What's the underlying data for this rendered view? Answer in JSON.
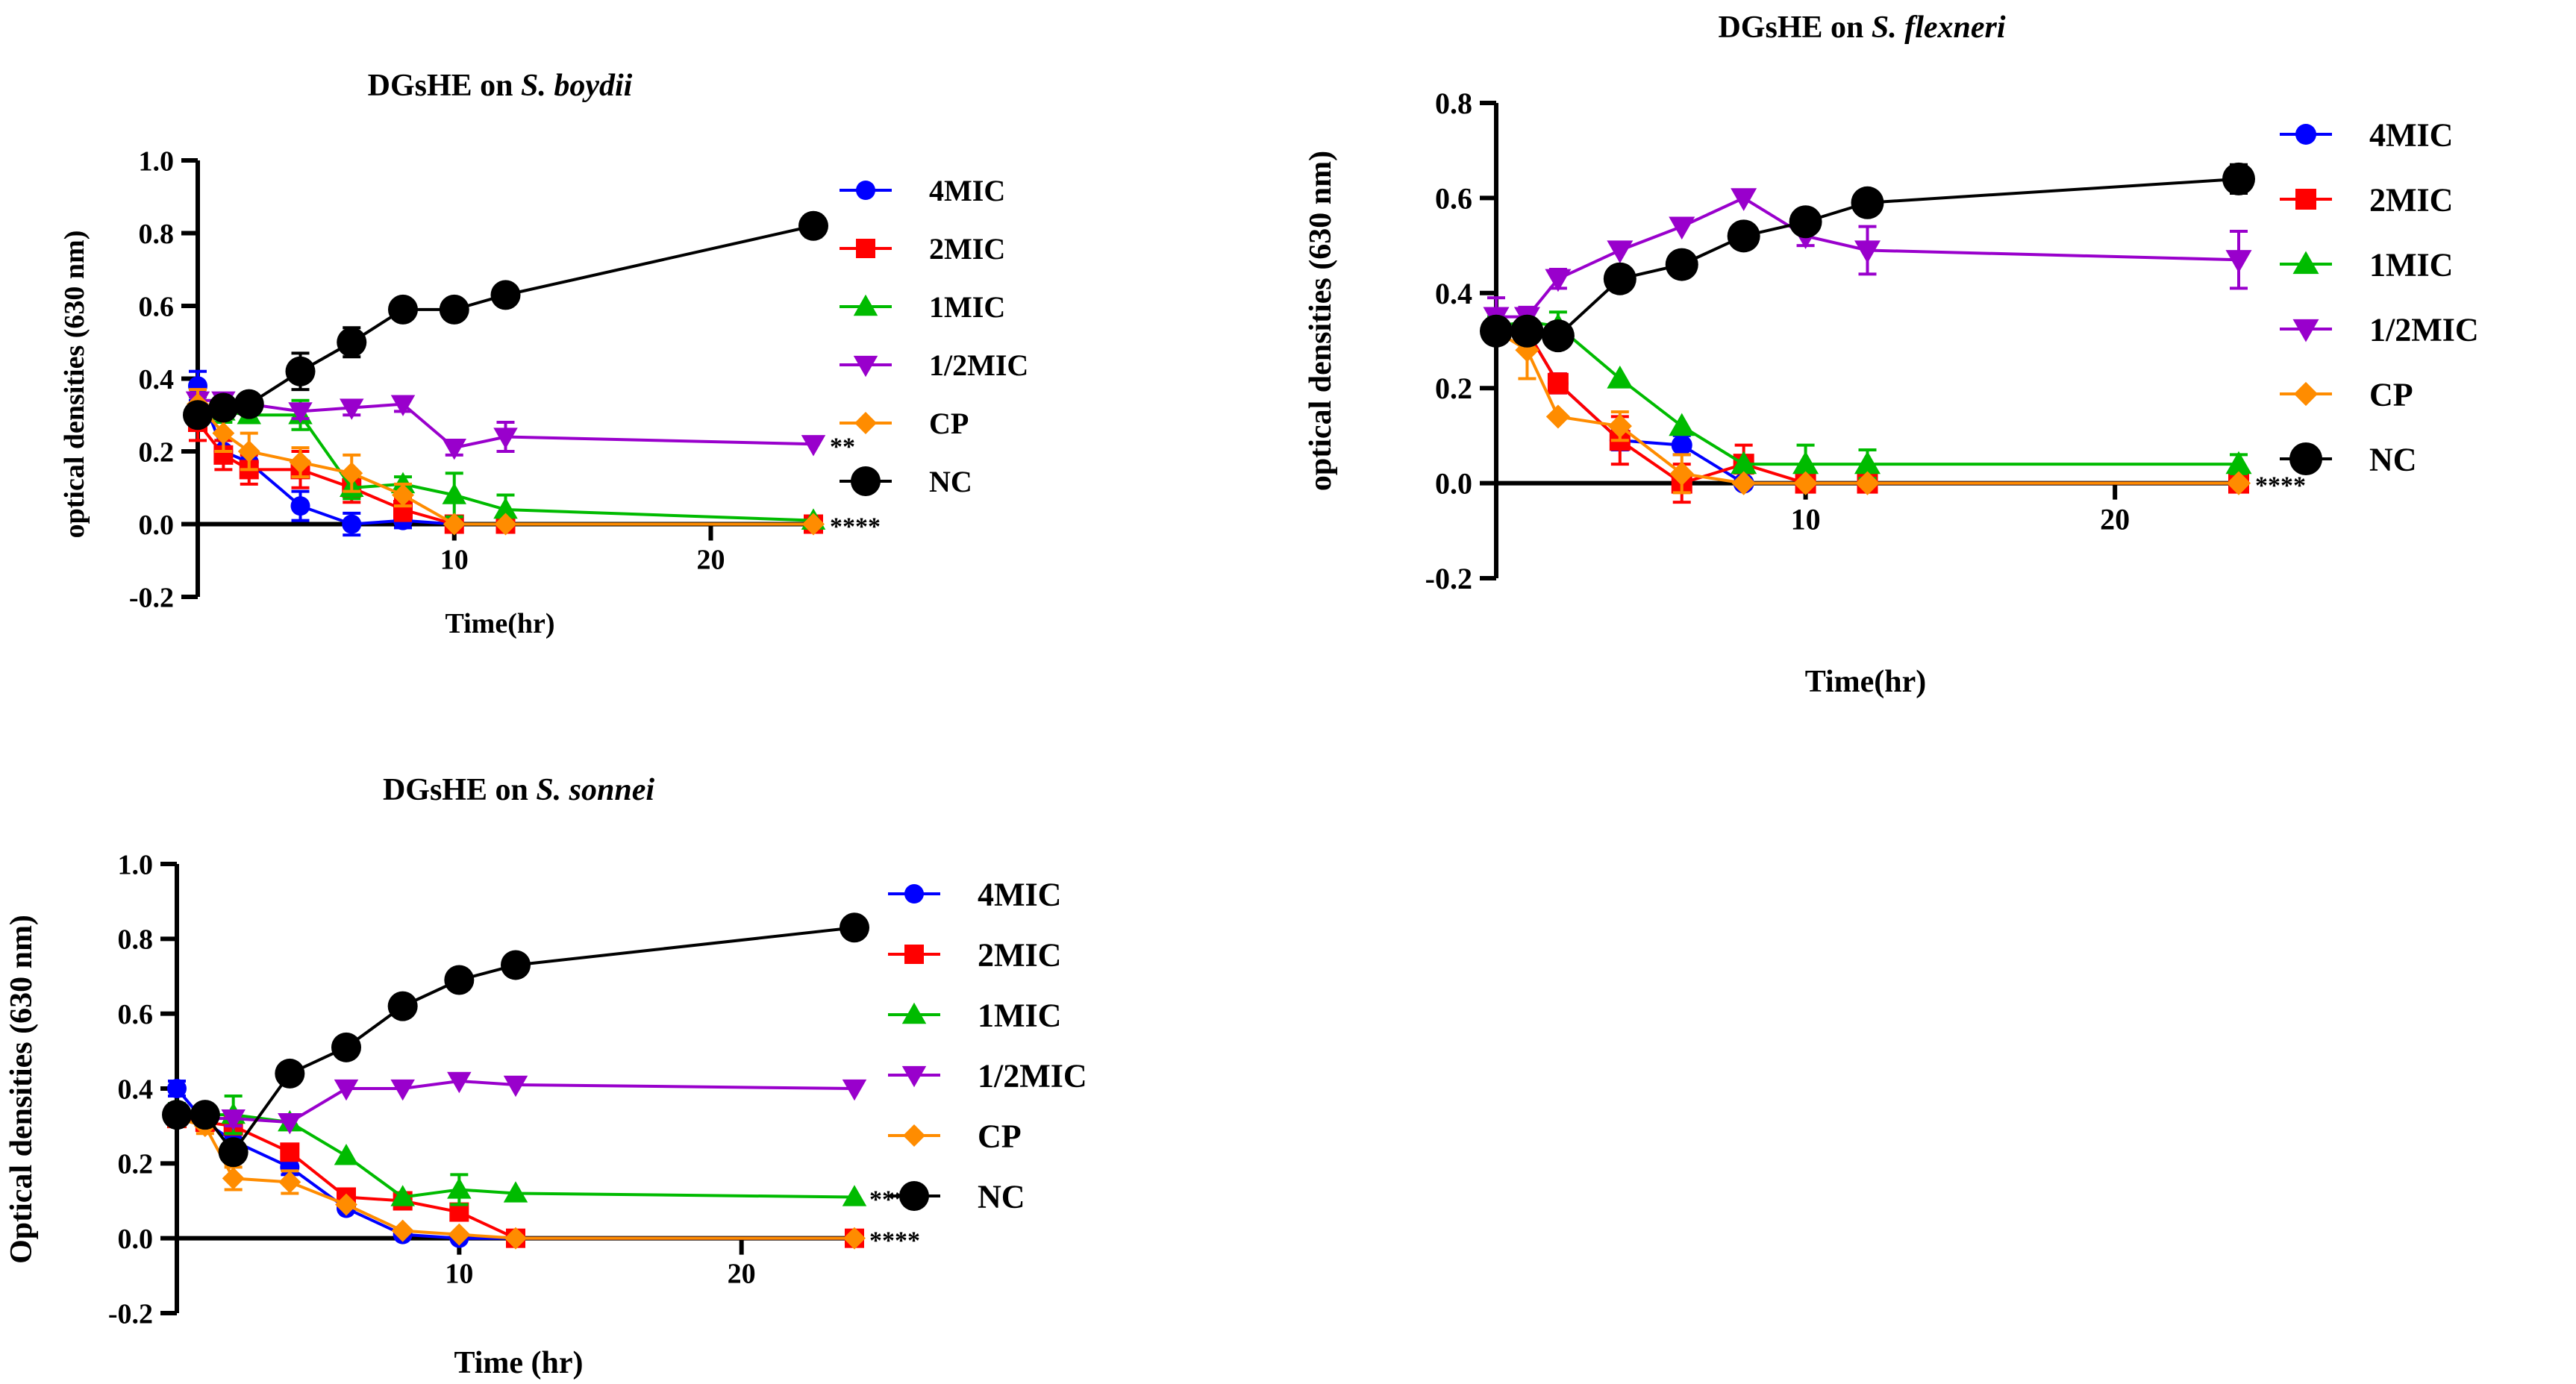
{
  "chart_data": [
    {
      "type": "line",
      "title_main": "DGsHE on ",
      "title_italic": "S. boydii",
      "xlabel": "Time(hr)",
      "ylabel": "optical densities (630 nm)",
      "xlim": [
        0,
        24
      ],
      "ylim": [
        -0.2,
        1.0
      ],
      "xticks": [
        10,
        20
      ],
      "xtick_labels": [
        "10",
        "20"
      ],
      "yticks": [
        -0.2,
        0.0,
        0.2,
        0.4,
        0.6,
        0.8,
        1.0
      ],
      "ytick_labels": [
        "-0.2",
        "0.0",
        "0.2",
        "0.4",
        "0.6",
        "0.8",
        "1.0"
      ],
      "legend_position": "right",
      "series": [
        {
          "name": "4MIC",
          "color": "#0000ff",
          "marker": "circle",
          "x": [
            0,
            1,
            2,
            4,
            6,
            8,
            10,
            12,
            24
          ],
          "y": [
            0.38,
            0.2,
            0.17,
            0.05,
            0.0,
            0.01,
            0.0,
            0.0,
            0.0
          ],
          "err": [
            0.04,
            0.03,
            0.03,
            0.04,
            0.03,
            0.02,
            0.01,
            0.01,
            0.01
          ]
        },
        {
          "name": "2MIC",
          "color": "#ff0000",
          "marker": "square",
          "x": [
            0,
            1,
            2,
            4,
            6,
            8,
            10,
            12,
            24
          ],
          "y": [
            0.28,
            0.19,
            0.15,
            0.15,
            0.1,
            0.04,
            0.0,
            0.0,
            0.0
          ],
          "err": [
            0.05,
            0.04,
            0.04,
            0.05,
            0.04,
            0.03,
            0.01,
            0.01,
            0.01
          ]
        },
        {
          "name": "1MIC",
          "color": "#00bb00",
          "marker": "triangle-up",
          "x": [
            0,
            1,
            2,
            4,
            6,
            8,
            10,
            12,
            24
          ],
          "y": [
            0.32,
            0.31,
            0.3,
            0.3,
            0.1,
            0.11,
            0.08,
            0.04,
            0.01
          ],
          "err": [
            0.03,
            0.03,
            0.02,
            0.04,
            0.03,
            0.02,
            0.06,
            0.04,
            0.01
          ]
        },
        {
          "name": "1/2MIC",
          "color": "#9900cc",
          "marker": "triangle-down",
          "x": [
            0,
            1,
            2,
            4,
            6,
            8,
            10,
            12,
            24
          ],
          "y": [
            0.34,
            0.34,
            0.33,
            0.31,
            0.32,
            0.33,
            0.21,
            0.24,
            0.22
          ],
          "err": [
            0.03,
            0.02,
            0.02,
            0.02,
            0.02,
            0.02,
            0.02,
            0.04,
            0.01
          ]
        },
        {
          "name": "CP",
          "color": "#ff8c00",
          "marker": "diamond",
          "x": [
            0,
            1,
            2,
            4,
            6,
            8,
            10,
            12,
            24
          ],
          "y": [
            0.33,
            0.25,
            0.2,
            0.17,
            0.14,
            0.08,
            0.0,
            0.0,
            0.0
          ],
          "err": [
            0.04,
            0.05,
            0.05,
            0.04,
            0.05,
            0.03,
            0.01,
            0.01,
            0.01
          ]
        },
        {
          "name": "NC",
          "color": "#000000",
          "marker": "circle-big",
          "x": [
            0,
            1,
            2,
            4,
            6,
            8,
            10,
            12,
            24
          ],
          "y": [
            0.3,
            0.32,
            0.33,
            0.42,
            0.5,
            0.59,
            0.59,
            0.63,
            0.82
          ],
          "err": [
            0.02,
            0.02,
            0.02,
            0.05,
            0.04,
            0.01,
            0.01,
            0.01,
            0.03
          ]
        }
      ],
      "annotations": [
        {
          "text": "**",
          "series": "1/2MIC"
        },
        {
          "text": "****",
          "series": "4MIC"
        }
      ]
    },
    {
      "type": "line",
      "title_main": "DGsHE on ",
      "title_italic": "S. flexneri",
      "xlabel": "Time(hr)",
      "ylabel": "optical densities (630 nm)",
      "xlim": [
        0,
        24
      ],
      "ylim": [
        -0.2,
        0.8
      ],
      "xticks": [
        10,
        20
      ],
      "xtick_labels": [
        "10",
        "20"
      ],
      "yticks": [
        -0.2,
        0.0,
        0.2,
        0.4,
        0.6,
        0.8
      ],
      "ytick_labels": [
        "-0.2",
        "0.0",
        "0.2",
        "0.4",
        "0.6",
        "0.8"
      ],
      "legend_position": "right",
      "series": [
        {
          "name": "4MIC",
          "color": "#0000ff",
          "marker": "circle",
          "x": [
            0,
            1,
            2,
            4,
            6,
            8,
            10,
            12,
            24
          ],
          "y": [
            0.32,
            0.32,
            0.21,
            0.09,
            0.08,
            0.0,
            0.0,
            0.0,
            0.0
          ],
          "err": [
            0.02,
            0.02,
            0.02,
            0.02,
            0.02,
            0.01,
            0.01,
            0.01,
            0.01
          ]
        },
        {
          "name": "2MIC",
          "color": "#ff0000",
          "marker": "square",
          "x": [
            0,
            1,
            2,
            4,
            6,
            8,
            10,
            12,
            24
          ],
          "y": [
            0.32,
            0.32,
            0.21,
            0.09,
            0.0,
            0.04,
            0.0,
            0.0,
            0.0
          ],
          "err": [
            0.02,
            0.02,
            0.02,
            0.05,
            0.04,
            0.04,
            0.01,
            0.01,
            0.01
          ]
        },
        {
          "name": "1MIC",
          "color": "#00bb00",
          "marker": "triangle-up",
          "x": [
            0,
            1,
            2,
            4,
            6,
            8,
            10,
            12,
            24
          ],
          "y": [
            0.33,
            0.34,
            0.33,
            0.22,
            0.12,
            0.04,
            0.04,
            0.04,
            0.04
          ],
          "err": [
            0.02,
            0.02,
            0.03,
            0.01,
            0.01,
            0.01,
            0.04,
            0.03,
            0.02
          ]
        },
        {
          "name": "1/2MIC",
          "color": "#9900cc",
          "marker": "triangle-down",
          "x": [
            0,
            1,
            2,
            4,
            6,
            8,
            10,
            12,
            24
          ],
          "y": [
            0.35,
            0.35,
            0.43,
            0.49,
            0.54,
            0.6,
            0.52,
            0.49,
            0.47
          ],
          "err": [
            0.04,
            0.02,
            0.02,
            0.01,
            0.01,
            0.01,
            0.02,
            0.05,
            0.06
          ]
        },
        {
          "name": "CP",
          "color": "#ff8c00",
          "marker": "diamond",
          "x": [
            0,
            1,
            2,
            4,
            6,
            8,
            10,
            12,
            24
          ],
          "y": [
            0.32,
            0.28,
            0.14,
            0.12,
            0.02,
            0.0,
            0.0,
            0.0,
            0.0
          ],
          "err": [
            0.02,
            0.06,
            0.01,
            0.03,
            0.04,
            0.01,
            0.01,
            0.01,
            0.01
          ]
        },
        {
          "name": "NC",
          "color": "#000000",
          "marker": "circle-big",
          "x": [
            0,
            1,
            2,
            4,
            6,
            8,
            10,
            12,
            24
          ],
          "y": [
            0.32,
            0.32,
            0.31,
            0.43,
            0.46,
            0.52,
            0.55,
            0.59,
            0.64
          ],
          "err": [
            0.02,
            0.02,
            0.02,
            0.01,
            0.01,
            0.01,
            0.01,
            0.01,
            0.03
          ]
        }
      ],
      "annotations": [
        {
          "text": "****",
          "series": "4MIC"
        }
      ]
    },
    {
      "type": "line",
      "title_main": "DGsHE on ",
      "title_italic": "S. sonnei",
      "xlabel": "Time (hr)",
      "ylabel": "Optical densities (630 nm)",
      "xlim": [
        0,
        24
      ],
      "ylim": [
        -0.2,
        1.0
      ],
      "xticks": [
        10,
        20
      ],
      "xtick_labels": [
        "10",
        "20"
      ],
      "yticks": [
        -0.2,
        0.0,
        0.2,
        0.4,
        0.6,
        0.8,
        1.0
      ],
      "ytick_labels": [
        "-0.2",
        "0.0",
        "0.2",
        "0.4",
        "0.6",
        "0.8",
        "1.0"
      ],
      "legend_position": "right",
      "series": [
        {
          "name": "4MIC",
          "color": "#0000ff",
          "marker": "circle",
          "x": [
            0,
            1,
            2,
            4,
            6,
            8,
            10,
            12,
            24
          ],
          "y": [
            0.4,
            0.31,
            0.26,
            0.19,
            0.08,
            0.01,
            0.0,
            0.0,
            0.0
          ],
          "err": [
            0.02,
            0.02,
            0.02,
            0.02,
            0.01,
            0.01,
            0.01,
            0.01,
            0.01
          ]
        },
        {
          "name": "2MIC",
          "color": "#ff0000",
          "marker": "square",
          "x": [
            0,
            1,
            2,
            4,
            6,
            8,
            10,
            12,
            24
          ],
          "y": [
            0.32,
            0.31,
            0.3,
            0.23,
            0.11,
            0.1,
            0.07,
            0.0,
            0.0
          ],
          "err": [
            0.02,
            0.02,
            0.02,
            0.02,
            0.01,
            0.01,
            0.02,
            0.01,
            0.01
          ]
        },
        {
          "name": "1MIC",
          "color": "#00bb00",
          "marker": "triangle-up",
          "x": [
            0,
            1,
            2,
            4,
            6,
            8,
            10,
            12,
            24
          ],
          "y": [
            0.34,
            0.33,
            0.33,
            0.31,
            0.22,
            0.11,
            0.13,
            0.12,
            0.11
          ],
          "err": [
            0.02,
            0.02,
            0.05,
            0.02,
            0.01,
            0.01,
            0.04,
            0.01,
            0.01
          ]
        },
        {
          "name": "1/2MIC",
          "color": "#9900cc",
          "marker": "triangle-down",
          "x": [
            0,
            1,
            2,
            4,
            6,
            8,
            10,
            12,
            24
          ],
          "y": [
            0.33,
            0.32,
            0.32,
            0.31,
            0.4,
            0.4,
            0.42,
            0.41,
            0.4
          ],
          "err": [
            0.02,
            0.02,
            0.02,
            0.01,
            0.01,
            0.01,
            0.01,
            0.01,
            0.01
          ]
        },
        {
          "name": "CP",
          "color": "#ff8c00",
          "marker": "diamond",
          "x": [
            0,
            1,
            2,
            4,
            6,
            8,
            10,
            12,
            24
          ],
          "y": [
            0.32,
            0.3,
            0.16,
            0.15,
            0.09,
            0.02,
            0.01,
            0.0,
            0.0
          ],
          "err": [
            0.02,
            0.02,
            0.03,
            0.03,
            0.01,
            0.01,
            0.01,
            0.01,
            0.01
          ]
        },
        {
          "name": "NC",
          "color": "#000000",
          "marker": "circle-big",
          "x": [
            0,
            1,
            2,
            4,
            6,
            8,
            10,
            12,
            24
          ],
          "y": [
            0.33,
            0.33,
            0.23,
            0.44,
            0.51,
            0.62,
            0.69,
            0.73,
            0.83
          ],
          "err": [
            0.01,
            0.01,
            0.01,
            0.01,
            0.01,
            0.01,
            0.01,
            0.02,
            0.01
          ]
        }
      ],
      "annotations": [
        {
          "text": "***",
          "series": "1MIC"
        },
        {
          "text": "****",
          "series": "4MIC"
        }
      ]
    }
  ]
}
